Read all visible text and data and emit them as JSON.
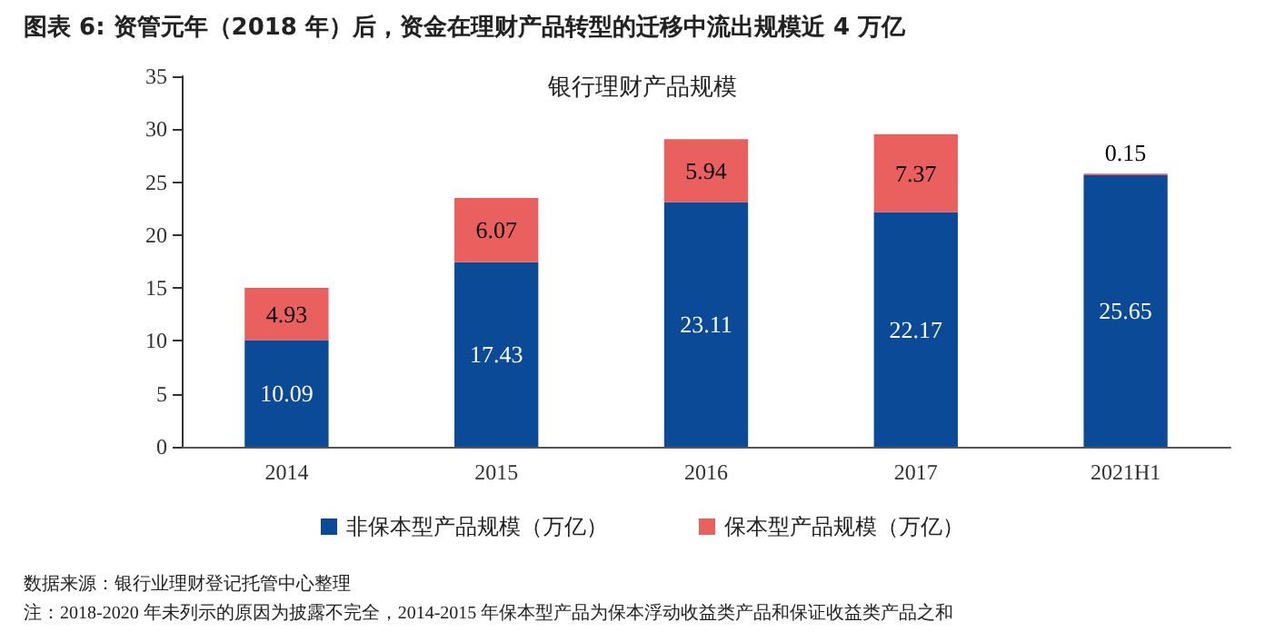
{
  "chart_data": {
    "type": "bar",
    "title": "图表 6: 资管元年（2018 年）后，资金在理财产品转型的迁移中流出规模近 4 万亿",
    "subtitle": "银行理财产品规模",
    "categories": [
      "2014",
      "2015",
      "2016",
      "2017",
      "2021H1"
    ],
    "series": [
      {
        "name": "非保本型产品规模（万亿）",
        "color": "#0b4a96",
        "values": [
          10.09,
          17.43,
          23.11,
          22.17,
          25.65
        ]
      },
      {
        "name": "保本型产品规模（万亿）",
        "color": "#e9605f",
        "values": [
          4.93,
          6.07,
          5.94,
          7.37,
          0.15
        ]
      }
    ],
    "stacked": true,
    "data_labels": true,
    "ylim": [
      0,
      35
    ],
    "yticks": [
      0,
      5,
      10,
      15,
      20,
      25,
      30,
      35
    ],
    "grid": false,
    "legend": "bottom",
    "annotations": [
      "数据来源：银行业理财登记托管中心整理",
      "注：2018-2020 年未列示的原因为披露不完全，2014-2015 年保本型产品为保本浮动收益类产品和保证收益类产品之和"
    ]
  }
}
